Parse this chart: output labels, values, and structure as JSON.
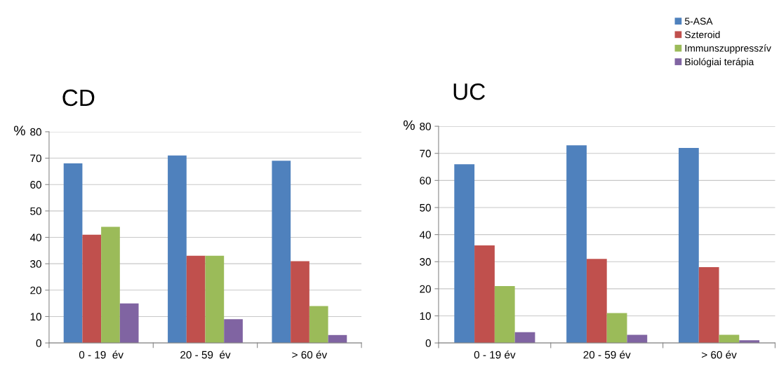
{
  "chart_data": [
    {
      "type": "bar",
      "title": "CD",
      "ylabel": "%",
      "categories": [
        "0 - 19  év",
        "20 - 59  év",
        "> 60 év"
      ],
      "ylim": [
        0,
        80
      ],
      "yticks": [
        0,
        10,
        20,
        30,
        40,
        50,
        60,
        70,
        80
      ],
      "grid": "y",
      "legend": false,
      "series": [
        {
          "color": "#4f81bd",
          "values": [
            68,
            71,
            69
          ]
        },
        {
          "color": "#c0504d",
          "values": [
            41,
            33,
            31
          ]
        },
        {
          "color": "#9bbb59",
          "values": [
            44,
            33,
            14
          ]
        },
        {
          "color": "#8064a2",
          "values": [
            15,
            9,
            3
          ]
        }
      ]
    },
    {
      "type": "bar",
      "title": "UC",
      "ylabel": "%",
      "categories": [
        "0 - 19 év",
        "20 - 59 év",
        "> 60 év"
      ],
      "ylim": [
        0,
        80
      ],
      "yticks": [
        0,
        10,
        20,
        30,
        40,
        50,
        60,
        70,
        80
      ],
      "grid": "y",
      "legend": "top right",
      "series": [
        {
          "name": "5-ASA",
          "color": "#4f81bd",
          "values": [
            66,
            73,
            72
          ]
        },
        {
          "name": "Szteroid",
          "color": "#c0504d",
          "values": [
            36,
            31,
            28
          ]
        },
        {
          "name": "Immunszuppresszív",
          "color": "#9bbb59",
          "values": [
            21,
            11,
            3
          ]
        },
        {
          "name": "Biológiai terápia",
          "color": "#8064a2",
          "values": [
            4,
            3,
            1
          ]
        }
      ]
    }
  ]
}
